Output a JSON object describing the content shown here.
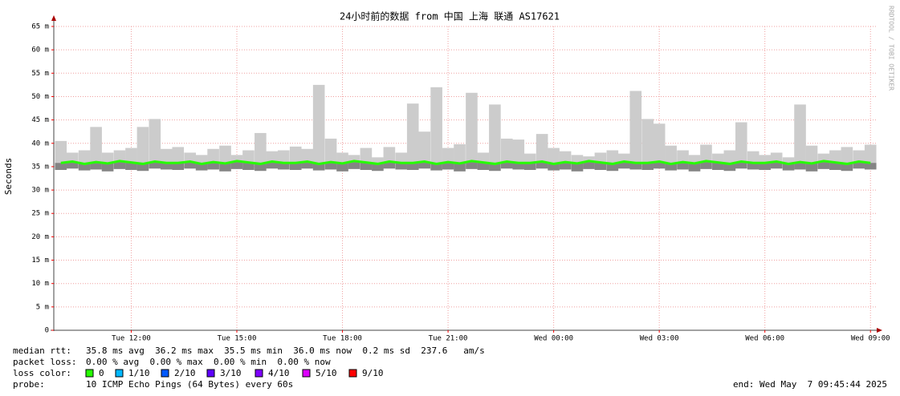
{
  "chart_data": {
    "type": "smoke",
    "title": "24小时前的数据 from 中国 上海 联通 AS17621",
    "y_label": "Seconds",
    "watermark": "RRDTOOL / TOBI OETIKER",
    "x": [
      10,
      10.33,
      10.67,
      11,
      11.33,
      11.67,
      12,
      12.33,
      12.67,
      13,
      13.33,
      13.67,
      14,
      14.33,
      14.67,
      15,
      15.33,
      15.67,
      16,
      16.33,
      16.67,
      17,
      17.33,
      17.67,
      18,
      18.33,
      18.67,
      19,
      19.33,
      19.67,
      20,
      20.33,
      20.67,
      21,
      21.33,
      21.67,
      22,
      22.33,
      22.67,
      23,
      23.33,
      23.67,
      24,
      24.33,
      24.67,
      25,
      25.33,
      25.67,
      26,
      26.33,
      26.67,
      27,
      27.33,
      27.67,
      28,
      28.33,
      28.67,
      29,
      29.33,
      29.67,
      30,
      30.33,
      30.67,
      31,
      31.33,
      31.67,
      32,
      32.33,
      32.67,
      33
    ],
    "max": [
      0.0405,
      0.038,
      0.0385,
      0.0435,
      0.038,
      0.0385,
      0.039,
      0.0435,
      0.0452,
      0.0388,
      0.0392,
      0.038,
      0.0375,
      0.0388,
      0.0395,
      0.0375,
      0.0385,
      0.0422,
      0.0383,
      0.0385,
      0.0393,
      0.0388,
      0.0525,
      0.041,
      0.038,
      0.0375,
      0.039,
      0.037,
      0.0392,
      0.038,
      0.0485,
      0.0425,
      0.052,
      0.039,
      0.0398,
      0.0508,
      0.038,
      0.0483,
      0.041,
      0.0408,
      0.0378,
      0.042,
      0.039,
      0.0383,
      0.0375,
      0.0372,
      0.038,
      0.0385,
      0.0378,
      0.0512,
      0.0452,
      0.0442,
      0.0395,
      0.0385,
      0.0375,
      0.0397,
      0.0378,
      0.0385,
      0.0445,
      0.0383,
      0.0375,
      0.038,
      0.037,
      0.0483,
      0.0395,
      0.0378,
      0.0385,
      0.0392,
      0.0385,
      0.0397
    ],
    "min": [
      0.0343,
      0.0346,
      0.0342,
      0.0344,
      0.034,
      0.0345,
      0.0343,
      0.0341,
      0.0346,
      0.0344,
      0.0343,
      0.0346,
      0.0342,
      0.0344,
      0.034,
      0.0345,
      0.0343,
      0.0341,
      0.0346,
      0.0344,
      0.0343,
      0.0346,
      0.0342,
      0.0344,
      0.034,
      0.0345,
      0.0343,
      0.0341,
      0.0346,
      0.0344,
      0.0343,
      0.0346,
      0.0342,
      0.0344,
      0.034,
      0.0345,
      0.0343,
      0.0341,
      0.0346,
      0.0344,
      0.0343,
      0.0346,
      0.0342,
      0.0344,
      0.034,
      0.0345,
      0.0343,
      0.0341,
      0.0346,
      0.0344,
      0.0343,
      0.0346,
      0.0342,
      0.0344,
      0.034,
      0.0345,
      0.0343,
      0.0341,
      0.0346,
      0.0344,
      0.0343,
      0.0346,
      0.0342,
      0.0344,
      0.034,
      0.0345,
      0.0343,
      0.0341,
      0.0346,
      0.0344
    ],
    "median": [
      0.0358,
      0.0361,
      0.0356,
      0.036,
      0.0357,
      0.0362,
      0.0359,
      0.0356,
      0.0361,
      0.0358,
      0.0358,
      0.0361,
      0.0356,
      0.036,
      0.0357,
      0.0362,
      0.0359,
      0.0356,
      0.0361,
      0.0358,
      0.0358,
      0.0361,
      0.0356,
      0.036,
      0.0357,
      0.0362,
      0.0359,
      0.0356,
      0.0361,
      0.0358,
      0.0358,
      0.0361,
      0.0356,
      0.036,
      0.0357,
      0.0362,
      0.0359,
      0.0356,
      0.0361,
      0.0358,
      0.0358,
      0.0361,
      0.0356,
      0.036,
      0.0357,
      0.0362,
      0.0359,
      0.0356,
      0.0361,
      0.0358,
      0.0358,
      0.0361,
      0.0356,
      0.036,
      0.0357,
      0.0362,
      0.0359,
      0.0356,
      0.0361,
      0.0358,
      0.0358,
      0.0361,
      0.0356,
      0.036,
      0.0357,
      0.0362,
      0.0359,
      0.0356,
      0.0361,
      0.0358
    ],
    "xlim": [
      9.8,
      33.2
    ],
    "xticks": [
      {
        "value": 12,
        "label": "Tue 12:00"
      },
      {
        "value": 15,
        "label": "Tue 15:00"
      },
      {
        "value": 18,
        "label": "Tue 18:00"
      },
      {
        "value": 21,
        "label": "Tue 21:00"
      },
      {
        "value": 24,
        "label": "Wed 00:00"
      },
      {
        "value": 27,
        "label": "Wed 03:00"
      },
      {
        "value": 30,
        "label": "Wed 06:00"
      },
      {
        "value": 33,
        "label": "Wed 09:00"
      }
    ],
    "ylim": [
      0,
      0.065
    ],
    "yticks": [
      0,
      {
        "value": 0.005,
        "label": "5 m"
      },
      {
        "value": 0.01,
        "label": "10 m"
      },
      {
        "value": 0.015,
        "label": "15 m"
      },
      {
        "value": 0.02,
        "label": "20 m"
      },
      {
        "value": 0.025,
        "label": "25 m"
      },
      {
        "value": 0.03,
        "label": "30 m"
      },
      {
        "value": 0.035,
        "label": "35 m"
      },
      {
        "value": 0.04,
        "label": "40 m"
      },
      {
        "value": 0.045,
        "label": "45 m"
      },
      {
        "value": 0.05,
        "label": "50 m"
      },
      {
        "value": 0.055,
        "label": "55 m"
      },
      {
        "value": 0.06,
        "label": "60 m"
      },
      {
        "value": 0.065,
        "label": "65 m"
      }
    ],
    "grid": true,
    "smoke_color": "#cccccc",
    "loss_colors": [
      {
        "label": "0",
        "color": "#26ff00"
      },
      {
        "label": "1/10",
        "color": "#00b8ff"
      },
      {
        "label": "2/10",
        "color": "#0059ff"
      },
      {
        "label": "3/10",
        "color": "#5e00ff"
      },
      {
        "label": "4/10",
        "color": "#7e00ff"
      },
      {
        "label": "5/10",
        "color": "#dd00ff"
      },
      {
        "label": "9/10",
        "color": "#ff0000"
      }
    ],
    "footer": {
      "median_rtt_label": "median rtt:",
      "median_rtt": "35.8 ms avg  36.2 ms max  35.5 ms min  36.0 ms now  0.2 ms sd  237.6   am/s",
      "packet_loss_label": "packet loss:",
      "packet_loss": "0.00 % avg  0.00 % max  0.00 % min  0.00 % now",
      "loss_color_label": "loss color:",
      "probe_label": "probe:",
      "probe": "10 ICMP Echo Pings (64 Bytes) every 60s",
      "end": "end: Wed May  7 09:45:44 2025"
    }
  }
}
